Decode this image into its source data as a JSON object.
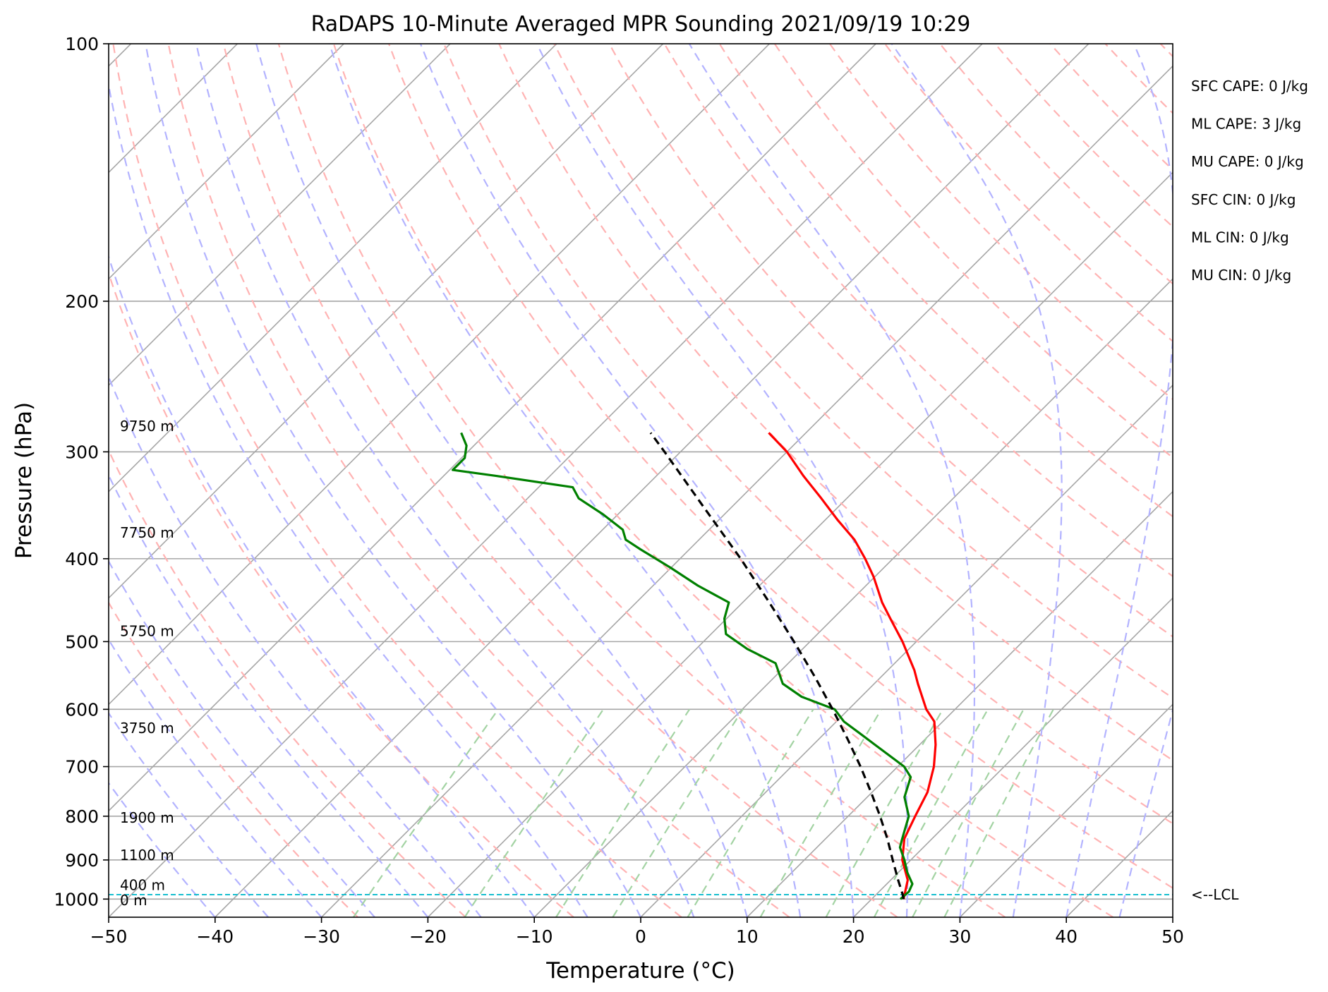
{
  "chart_data": {
    "type": "line",
    "subtype": "skew-t log-p sounding",
    "title": "RaDAPS 10-Minute Averaged MPR Sounding 2021/09/19 10:29",
    "xlabel": "Temperature (°C)",
    "ylabel": "Pressure (hPa)",
    "xlim": [
      -50,
      50
    ],
    "ylim": [
      1050,
      100
    ],
    "y_scale": "log",
    "x_ticks": [
      "−50",
      "−40",
      "−30",
      "−20",
      "−10",
      "0",
      "10",
      "20",
      "30",
      "40",
      "50"
    ],
    "x_tick_values": [
      -50,
      -40,
      -30,
      -20,
      -10,
      0,
      10,
      20,
      30,
      40,
      50
    ],
    "y_ticks": [
      "1000",
      "900",
      "800",
      "700",
      "600",
      "500",
      "400",
      "300",
      "200",
      "100"
    ],
    "y_tick_values": [
      1000,
      900,
      800,
      700,
      600,
      500,
      400,
      300,
      200,
      100
    ],
    "grid": true,
    "colors": {
      "temperature": "#ff0000",
      "dewpoint": "#008000",
      "parcel": "#000000",
      "isotherm": "#a6a6a6",
      "dry_adiabat": "#ffb3b3",
      "moist_adiabat": "#b3b3ff",
      "mixing_ratio": "#a3d3a3",
      "lcl": "#17becf"
    },
    "height_labels": [
      {
        "text": "9750 m",
        "pressure": 280
      },
      {
        "text": "7750 m",
        "pressure": 373
      },
      {
        "text": "5750 m",
        "pressure": 486
      },
      {
        "text": "3750 m",
        "pressure": 631
      },
      {
        "text": "1900 m",
        "pressure": 803
      },
      {
        "text": "1100 m",
        "pressure": 888
      },
      {
        "text": "400 m",
        "pressure": 963
      },
      {
        "text": "0 m",
        "pressure": 1003
      }
    ],
    "lcl": {
      "label": "<--LCL",
      "pressure": 988
    },
    "stats": [
      "SFC CAPE: 0 J/kg",
      "ML CAPE: 3 J/kg",
      "MU CAPE: 0 J/kg",
      "SFC CIN: 0 J/kg",
      "ML CIN: 0 J/kg",
      "MU CIN: 0 J/kg"
    ],
    "series": [
      {
        "id": "temperature",
        "points": [
          [
            1000,
            23
          ],
          [
            950,
            21.6
          ],
          [
            900,
            19.2
          ],
          [
            850,
            17.4
          ],
          [
            800,
            16.3
          ],
          [
            750,
            15.2
          ],
          [
            700,
            13.4
          ],
          [
            660,
            11.5
          ],
          [
            620,
            9.2
          ],
          [
            600,
            7.3
          ],
          [
            560,
            4.1
          ],
          [
            540,
            2.5
          ],
          [
            500,
            -1.3
          ],
          [
            470,
            -4.6
          ],
          [
            450,
            -6.9
          ],
          [
            420,
            -10.1
          ],
          [
            400,
            -12.6
          ],
          [
            380,
            -15.4
          ],
          [
            360,
            -18.9
          ],
          [
            340,
            -22.4
          ],
          [
            320,
            -26.2
          ],
          [
            300,
            -30.0
          ],
          [
            285,
            -33.5
          ]
        ]
      },
      {
        "id": "dewpoint",
        "points": [
          [
            1000,
            22.7
          ],
          [
            980,
            22.8
          ],
          [
            960,
            22.4
          ],
          [
            930,
            20.8
          ],
          [
            900,
            19.4
          ],
          [
            870,
            17.8
          ],
          [
            850,
            17.2
          ],
          [
            800,
            15.7
          ],
          [
            760,
            13.5
          ],
          [
            720,
            12.2
          ],
          [
            700,
            10.6
          ],
          [
            660,
            5.8
          ],
          [
            640,
            3.3
          ],
          [
            620,
            0.7
          ],
          [
            600,
            -1.3
          ],
          [
            580,
            -5.6
          ],
          [
            560,
            -8.6
          ],
          [
            530,
            -11.2
          ],
          [
            510,
            -15.2
          ],
          [
            490,
            -18.6
          ],
          [
            470,
            -20.2
          ],
          [
            450,
            -21.3
          ],
          [
            430,
            -25.8
          ],
          [
            410,
            -30.0
          ],
          [
            390,
            -34.6
          ],
          [
            380,
            -36.9
          ],
          [
            370,
            -38.1
          ],
          [
            355,
            -41.4
          ],
          [
            340,
            -45.2
          ],
          [
            330,
            -46.8
          ],
          [
            320,
            -55.1
          ],
          [
            315,
            -59.7
          ],
          [
            305,
            -59.7
          ],
          [
            295,
            -60.7
          ],
          [
            285,
            -62.4
          ]
        ]
      },
      {
        "id": "parcel",
        "points": [
          [
            1000,
            23
          ],
          [
            988,
            22.5
          ],
          [
            950,
            20.7
          ],
          [
            900,
            18.3
          ],
          [
            850,
            15.8
          ],
          [
            800,
            13.0
          ],
          [
            750,
            9.9
          ],
          [
            700,
            6.5
          ],
          [
            650,
            2.7
          ],
          [
            600,
            -1.5
          ],
          [
            550,
            -6.2
          ],
          [
            500,
            -11.5
          ],
          [
            450,
            -17.5
          ],
          [
            400,
            -24.3
          ],
          [
            350,
            -32.3
          ],
          [
            300,
            -41.5
          ],
          [
            285,
            -44.6
          ]
        ]
      }
    ]
  }
}
